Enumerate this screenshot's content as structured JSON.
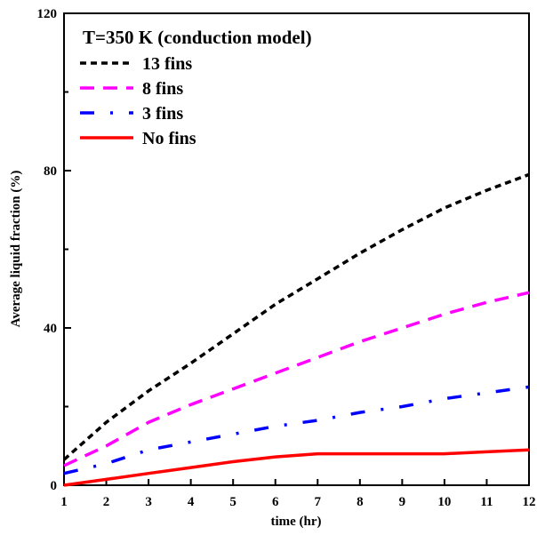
{
  "chart_data": {
    "type": "line",
    "title": "",
    "xlabel": "time (hr)",
    "ylabel": "Average liquid fraction (%)",
    "xlim": [
      1,
      12
    ],
    "ylim": [
      0,
      120
    ],
    "xticks": [
      1,
      2,
      3,
      4,
      5,
      6,
      7,
      8,
      9,
      10,
      11,
      12
    ],
    "yticks": [
      0,
      40,
      80,
      120
    ],
    "grid": false,
    "legend": {
      "title": "T=350 K (conduction  model)",
      "position": "top-left"
    },
    "series": [
      {
        "name": "13 fins",
        "color": "#000000",
        "style": "dotted",
        "x": [
          1,
          2,
          3,
          4,
          5,
          6,
          7,
          8,
          9,
          10,
          11,
          12
        ],
        "y": [
          6.5,
          16,
          24,
          31,
          38.5,
          46,
          52.5,
          59,
          65,
          70.5,
          75,
          79
        ]
      },
      {
        "name": "8 fins",
        "color": "#ff00ff",
        "style": "dashed",
        "x": [
          1,
          2,
          3,
          4,
          5,
          6,
          7,
          8,
          9,
          10,
          11,
          12
        ],
        "y": [
          5,
          10,
          16,
          20.5,
          24.5,
          28.5,
          32.5,
          36.5,
          40,
          43.5,
          46.5,
          49
        ]
      },
      {
        "name": "3 fins",
        "color": "#0000ff",
        "style": "dash-dot",
        "x": [
          1,
          2,
          3,
          4,
          5,
          6,
          7,
          8,
          9,
          10,
          11,
          12
        ],
        "y": [
          3,
          5.5,
          9,
          11,
          13,
          15,
          16.5,
          18.5,
          20,
          22,
          23.5,
          25
        ]
      },
      {
        "name": "No fins",
        "color": "#ff0000",
        "style": "solid",
        "x": [
          1,
          2,
          3,
          4,
          5,
          6,
          7,
          8,
          9,
          10,
          11,
          12
        ],
        "y": [
          0,
          1.5,
          3,
          4.5,
          6,
          7.2,
          8,
          8,
          8,
          8,
          8.5,
          9
        ]
      }
    ]
  }
}
